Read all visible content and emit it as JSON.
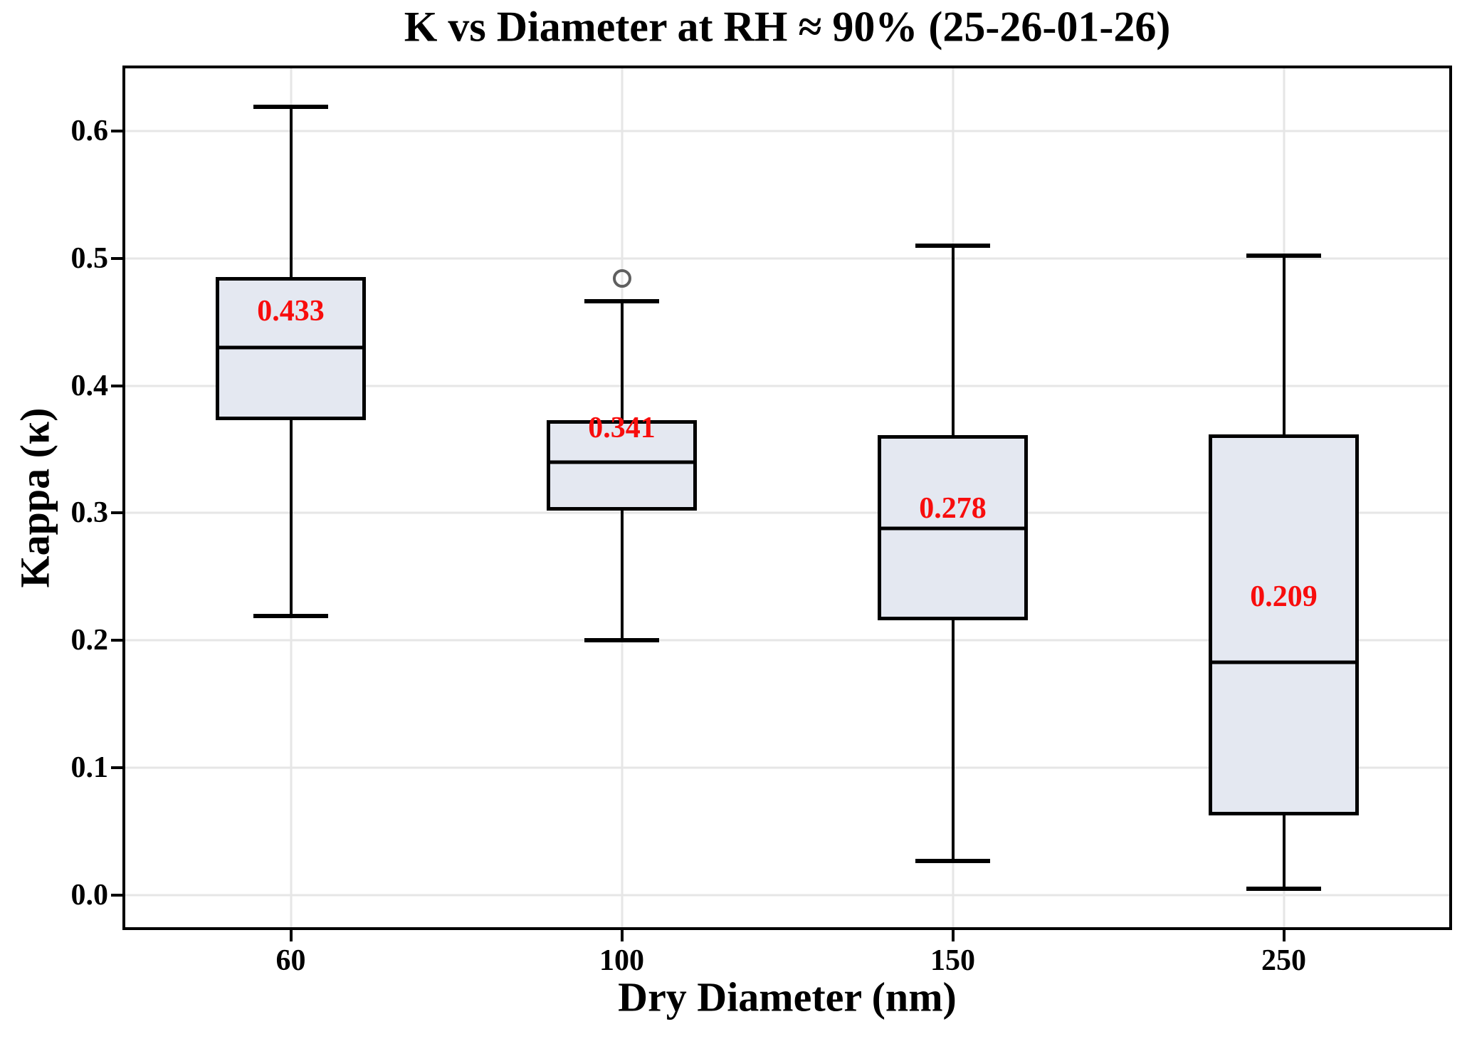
{
  "chart_data": {
    "type": "box",
    "title": "K vs Diameter at RH ≈ 90% (25-26-01-26)",
    "xlabel": "Dry Diameter (nm)",
    "ylabel": "Kappa (κ)",
    "categories": [
      "60",
      "100",
      "150",
      "250"
    ],
    "ytick_labels": [
      "0.0",
      "0.1",
      "0.2",
      "0.3",
      "0.4",
      "0.5",
      "0.6"
    ],
    "ytick_values": [
      0.0,
      0.1,
      0.2,
      0.3,
      0.4,
      0.5,
      0.6
    ],
    "ylim": [
      -0.025,
      0.649
    ],
    "grid": true,
    "legend_position": "none",
    "boxes": [
      {
        "category": "60",
        "whisker_low": 0.219,
        "q1": 0.373,
        "median": 0.43,
        "q3": 0.485,
        "whisker_high": 0.619,
        "mean": 0.433,
        "mean_label": "0.433",
        "outliers": []
      },
      {
        "category": "100",
        "whisker_low": 0.2,
        "q1": 0.302,
        "median": 0.34,
        "q3": 0.373,
        "whisker_high": 0.466,
        "mean": 0.341,
        "mean_label": "0.341",
        "outliers": [
          0.484
        ]
      },
      {
        "category": "150",
        "whisker_low": 0.027,
        "q1": 0.216,
        "median": 0.288,
        "q3": 0.361,
        "whisker_high": 0.51,
        "mean": 0.278,
        "mean_label": "0.278",
        "outliers": []
      },
      {
        "category": "250",
        "whisker_low": 0.005,
        "q1": 0.063,
        "median": 0.183,
        "q3": 0.362,
        "whisker_high": 0.502,
        "mean": 0.209,
        "mean_label": "0.209",
        "outliers": []
      }
    ],
    "colors": {
      "box_fill": "#e4e8f1",
      "box_edge": "#000000",
      "median": "#000000",
      "whisker": "#000000",
      "mean_label": "#f80d0d",
      "outlier_edge": "#5f5f5f",
      "grid": "#e6e6e6",
      "axis": "#000000"
    }
  }
}
